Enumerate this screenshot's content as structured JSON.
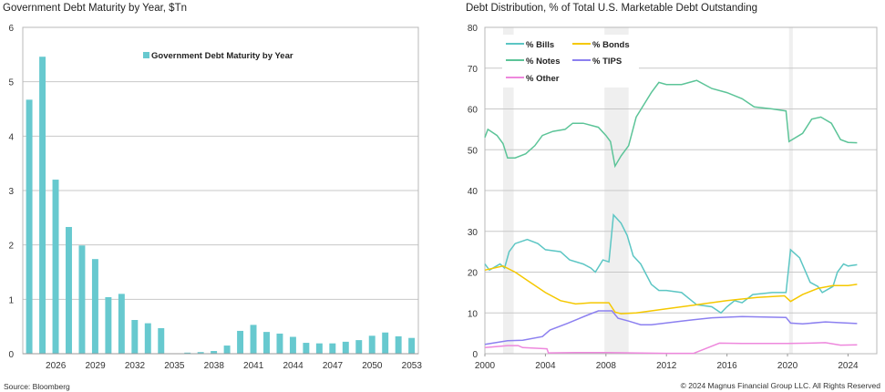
{
  "left_title": "Government Debt Maturity by Year, $Tn",
  "right_title": "Debt Distribution, % of Total U.S. Marketable Debt Outstanding",
  "source": "Source: Bloomberg",
  "copyright": "© 2024 Magnus Financial Group LLC. All Rights Reserved",
  "chart_data": [
    {
      "type": "bar",
      "title": "Government Debt Maturity by Year, $Tn",
      "xlabel": "",
      "ylabel": "",
      "legend": [
        "Government Debt Maturity by Year"
      ],
      "legend_placement": "top-center",
      "color": "#67c9cf",
      "ylim": [
        0,
        6
      ],
      "yticks": [
        "0",
        "1",
        "2",
        "3",
        "4",
        "5",
        "6"
      ],
      "xticks": [
        "2026",
        "2029",
        "2032",
        "2035",
        "2038",
        "2041",
        "2044",
        "2047",
        "2050",
        "2053"
      ],
      "categories": [
        2024,
        2025,
        2026,
        2027,
        2028,
        2029,
        2030,
        2031,
        2032,
        2033,
        2034,
        2035,
        2036,
        2037,
        2038,
        2039,
        2040,
        2041,
        2042,
        2043,
        2044,
        2045,
        2046,
        2047,
        2048,
        2049,
        2050,
        2051,
        2052,
        2053
      ],
      "values": [
        4.67,
        5.46,
        3.2,
        2.33,
        1.99,
        1.74,
        1.04,
        1.1,
        0.62,
        0.56,
        0.47,
        0.0,
        0.02,
        0.03,
        0.05,
        0.15,
        0.42,
        0.53,
        0.4,
        0.37,
        0.31,
        0.2,
        0.19,
        0.19,
        0.22,
        0.25,
        0.33,
        0.39,
        0.32,
        0.29
      ],
      "grid": true
    },
    {
      "type": "line",
      "title": "Debt Distribution, % of Total U.S. Marketable Debt Outstanding",
      "xlim": [
        2000,
        2025.9
      ],
      "ylim": [
        0,
        80
      ],
      "yticks": [
        "0",
        "10",
        "20",
        "30",
        "40",
        "50",
        "60",
        "70",
        "80"
      ],
      "xticks": [
        "2000",
        "2004",
        "2008",
        "2012",
        "2016",
        "2020",
        "2024"
      ],
      "legend_placement": "top-left",
      "grid": true,
      "recessions": [
        [
          2001.2,
          2001.9
        ],
        [
          2007.9,
          2009.5
        ],
        [
          2020.1,
          2020.35
        ]
      ],
      "series": [
        {
          "name": "% Bills",
          "color": "#5cc6c4",
          "x": [
            2000,
            2000.3,
            2001,
            2001.3,
            2001.6,
            2002,
            2002.8,
            2003.5,
            2004,
            2005,
            2005.6,
            2006.5,
            2007,
            2007.3,
            2007.8,
            2008.2,
            2008.5,
            2009,
            2009.4,
            2009.8,
            2010.3,
            2011,
            2011.5,
            2012,
            2013,
            2014,
            2015,
            2015.6,
            2016,
            2016.5,
            2017,
            2017.7,
            2019,
            2019.9,
            2020.2,
            2020.8,
            2021.5,
            2022,
            2022.3,
            2023,
            2023.3,
            2023.7,
            2024,
            2024.6
          ],
          "y": [
            22,
            20.5,
            22,
            21,
            25,
            27,
            28,
            27,
            25.5,
            25,
            23,
            22,
            21,
            20,
            23,
            22.5,
            34,
            32,
            29,
            24,
            22,
            17,
            15.5,
            15.5,
            15,
            12,
            11.5,
            10,
            11.5,
            13,
            12.5,
            14.5,
            15,
            15,
            25.5,
            23.5,
            17.5,
            16.5,
            15,
            16.5,
            20,
            22,
            21.5,
            21.8
          ]
        },
        {
          "name": "% Bonds",
          "color": "#f5c800",
          "x": [
            2000,
            2001.2,
            2002,
            2003,
            2004,
            2005,
            2006,
            2007,
            2008.2,
            2008.6,
            2009,
            2010,
            2012,
            2014,
            2016,
            2018,
            2019.8,
            2020.2,
            2021,
            2022,
            2023,
            2024,
            2024.6
          ],
          "y": [
            20.5,
            21.5,
            20,
            17.5,
            15,
            13,
            12.2,
            12.5,
            12.5,
            10.2,
            9.8,
            10,
            11,
            12,
            13,
            13.8,
            14.2,
            12.8,
            14.5,
            16,
            16.7,
            16.7,
            17
          ]
        },
        {
          "name": "% Notes",
          "color": "#5cc498",
          "x": [
            2000,
            2000.2,
            2000.8,
            2001.2,
            2001.5,
            2002,
            2002.7,
            2003.3,
            2003.8,
            2004.5,
            2005.3,
            2005.8,
            2006.5,
            2007.5,
            2008,
            2008.3,
            2008.6,
            2009,
            2009.5,
            2010,
            2010.5,
            2011,
            2011.5,
            2012,
            2013,
            2014,
            2015,
            2016,
            2017,
            2017.8,
            2019,
            2019.9,
            2020.1,
            2021,
            2021.6,
            2022.2,
            2022.9,
            2023.5,
            2024,
            2024.6
          ],
          "y": [
            53,
            55,
            53.5,
            51.5,
            48,
            48,
            49,
            51,
            53.5,
            54.5,
            55,
            56.5,
            56.5,
            55.5,
            53.5,
            52,
            46,
            48.5,
            51,
            58,
            61,
            64,
            66.5,
            66,
            66,
            67,
            65,
            64,
            62.5,
            60.5,
            60,
            59.5,
            52,
            54,
            57.5,
            58,
            56.5,
            52.5,
            51.8,
            51.7
          ]
        },
        {
          "name": "% TIPS",
          "color": "#8c80f0",
          "x": [
            2000,
            2001.5,
            2002.5,
            2003.8,
            2004.3,
            2005.5,
            2006.8,
            2007.5,
            2008.4,
            2008.8,
            2009.5,
            2010.3,
            2011,
            2013,
            2015,
            2017,
            2019.9,
            2020.2,
            2021,
            2022.5,
            2023.5,
            2024.6
          ],
          "y": [
            2.3,
            3.2,
            3.3,
            4.2,
            5.8,
            7.5,
            9.5,
            10.5,
            10.5,
            8.7,
            8,
            7.1,
            7.1,
            8,
            8.8,
            9.1,
            8.9,
            7.5,
            7.3,
            7.8,
            7.6,
            7.4
          ]
        },
        {
          "name": "% Other",
          "color": "#ee88dd",
          "x": [
            2000,
            2001.5,
            2002.2,
            2002.5,
            2003.7,
            2004.1,
            2004.2,
            2006,
            2008,
            2012,
            2013.8,
            2015.5,
            2017,
            2020,
            2021.5,
            2022.5,
            2023.5,
            2024.6
          ],
          "y": [
            1.5,
            2,
            2,
            1.5,
            1.3,
            1.2,
            0.2,
            0.3,
            0.3,
            0.1,
            0.1,
            2.6,
            2.5,
            2.5,
            2.6,
            2.7,
            2.1,
            2.2
          ]
        }
      ]
    }
  ]
}
